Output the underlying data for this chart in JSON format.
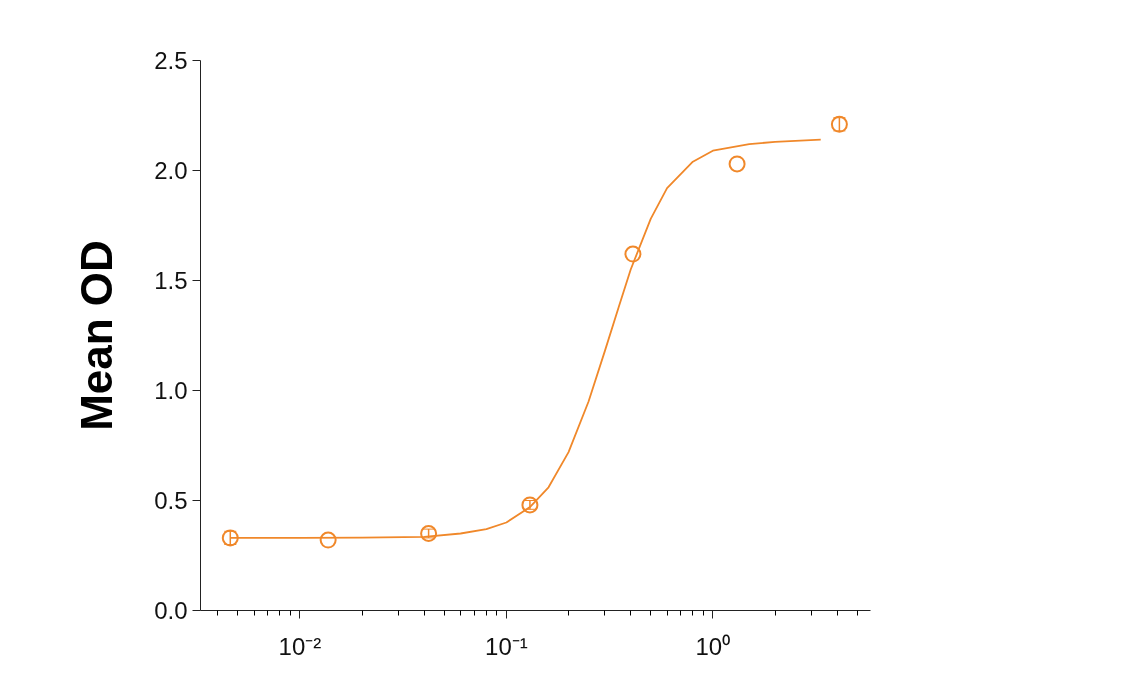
{
  "chart_data": {
    "type": "scatter",
    "ylabel": "Mean OD",
    "log": "x",
    "grid": false,
    "xlim": [
      0.0033,
      5.8
    ],
    "ylim": [
      0,
      2.5
    ],
    "xticks": [
      {
        "value": 0.01,
        "label": "10⁻²"
      },
      {
        "value": 0.1,
        "label": "10⁻¹"
      },
      {
        "value": 1,
        "label": "10⁰"
      }
    ],
    "yticks": [
      {
        "value": 0,
        "label": "0.0"
      },
      {
        "value": 0.5,
        "label": "0.5"
      },
      {
        "value": 1,
        "label": "1.0"
      },
      {
        "value": 1.5,
        "label": "1.5"
      },
      {
        "value": 2,
        "label": "2.0"
      },
      {
        "value": 2.5,
        "label": "2.5"
      }
    ],
    "series": [
      {
        "marker": "circle",
        "color": "#f0882a",
        "x": [
          0.0046,
          0.0137,
          0.042,
          0.13,
          0.41,
          1.31,
          4.1
        ],
        "values": [
          0.33,
          0.32,
          0.35,
          0.48,
          1.62,
          2.03,
          2.21
        ],
        "errors": [
          0.03,
          null,
          0.02,
          0.02,
          null,
          null,
          0.03
        ]
      },
      {
        "type": "line",
        "marker": "none",
        "line_style": "solid",
        "color": "#f0882a",
        "x": [
          0.0046,
          0.01,
          0.02,
          0.04,
          0.06,
          0.08,
          0.1,
          0.13,
          0.16,
          0.2,
          0.25,
          0.3,
          0.35,
          0.4,
          0.5,
          0.6,
          0.8,
          1.0,
          1.5,
          2.0,
          3.33
        ],
        "values": [
          0.33,
          0.33,
          0.331,
          0.335,
          0.35,
          0.37,
          0.4,
          0.47,
          0.56,
          0.72,
          0.95,
          1.18,
          1.38,
          1.55,
          1.78,
          1.92,
          2.04,
          2.09,
          2.12,
          2.13,
          2.14
        ]
      }
    ]
  }
}
